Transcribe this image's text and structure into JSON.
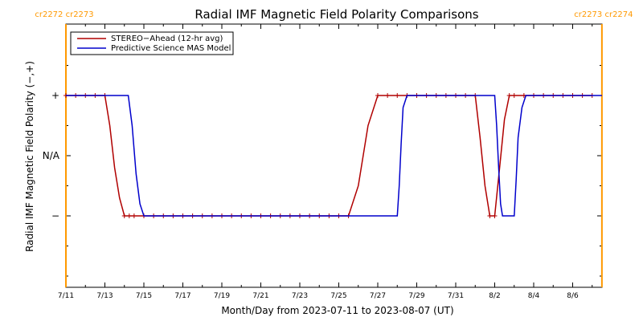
{
  "chart_data": {
    "type": "line",
    "title": "Radial IMF Magnetic Field Polarity Comparisons",
    "xlabel": "Month/Day from 2023-07-11 to 2023-08-07 (UT)",
    "ylabel": "Radial IMF Magnetic Field Polarity (−,+)",
    "x_tick_labels": [
      "7/11",
      "7/13",
      "7/15",
      "7/17",
      "7/19",
      "7/21",
      "7/23",
      "7/25",
      "7/27",
      "7/29",
      "7/31",
      "8/2",
      "8/4",
      "8/6"
    ],
    "x_ticks_days": [
      0,
      2,
      4,
      6,
      8,
      10,
      12,
      14,
      16,
      18,
      20,
      22,
      24,
      26
    ],
    "xlim_days": [
      0,
      27.5
    ],
    "y_tick_labels": [
      "−",
      "N/A",
      "+"
    ],
    "y_ticks": [
      -1,
      0,
      1
    ],
    "ylim": [
      -2,
      2
    ],
    "carrington_markers": [
      {
        "day": 0,
        "label": "cr2272 cr2273",
        "color": "#ff9900"
      },
      {
        "day": 27.5,
        "label": "cr2273 cr2274",
        "color": "#ff9900"
      }
    ],
    "legend_position": "top-left",
    "series": [
      {
        "name": "STEREO−Ahead (12-hr avg)",
        "color": "#b00000",
        "markers": true,
        "x": [
          0,
          0.5,
          1,
          1.5,
          2,
          2.25,
          2.5,
          2.75,
          3,
          3.25,
          3.5,
          4,
          4.5,
          5,
          5.5,
          6,
          6.5,
          7,
          7.5,
          8,
          8.5,
          9,
          9.5,
          10,
          10.5,
          11,
          11.5,
          12,
          12.5,
          13,
          13.5,
          14,
          14.5,
          15,
          15.5,
          16,
          16.5,
          17,
          17.5,
          18,
          18.5,
          19,
          19.5,
          20,
          20.5,
          21,
          21.25,
          21.5,
          21.75,
          22,
          22.25,
          22.5,
          22.75,
          23,
          23.5,
          24,
          24.5,
          25,
          25.5,
          26,
          26.5,
          27
        ],
        "y": [
          1,
          1,
          1,
          1,
          1,
          0.5,
          -0.2,
          -0.7,
          -1,
          -1,
          -1,
          -1,
          -1,
          -1,
          -1,
          -1,
          -1,
          -1,
          -1,
          -1,
          -1,
          -1,
          -1,
          -1,
          -1,
          -1,
          -1,
          -1,
          -1,
          -1,
          -1,
          -1,
          -1,
          -0.5,
          0.5,
          1,
          1,
          1,
          1,
          1,
          1,
          1,
          1,
          1,
          1,
          1,
          0.3,
          -0.5,
          -1,
          -1,
          -0.2,
          0.6,
          1,
          1,
          1,
          1,
          1,
          1,
          1,
          1,
          1,
          1
        ]
      },
      {
        "name": "Predictive Science MAS Model",
        "color": "#0000cc",
        "markers": false,
        "x": [
          0,
          3.2,
          3.4,
          3.6,
          3.8,
          4,
          17,
          17.1,
          17.2,
          17.3,
          17.5,
          22,
          22.1,
          22.2,
          22.3,
          22.4,
          23,
          23.1,
          23.2,
          23.4,
          23.6,
          27.5
        ],
        "y": [
          1,
          1,
          0.5,
          -0.3,
          -0.8,
          -1,
          -1,
          -0.5,
          0.2,
          0.8,
          1,
          1,
          0.5,
          -0.2,
          -0.8,
          -1,
          -1,
          -0.4,
          0.3,
          0.8,
          1,
          1
        ]
      }
    ]
  }
}
